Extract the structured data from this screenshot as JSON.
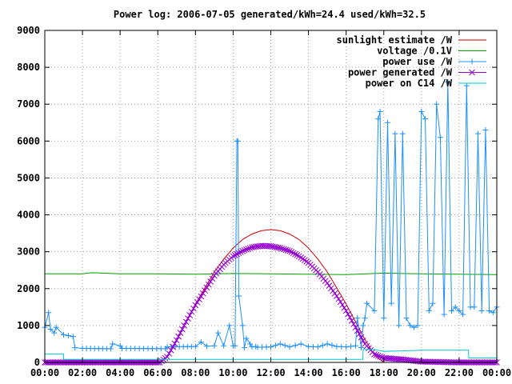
{
  "chart_data": {
    "type": "line",
    "title": "Power log: 2006-07-05 generated/kWh=24.4 used/kWh=32.5",
    "xlabel": "",
    "ylabel": "",
    "xlim": [
      0,
      24
    ],
    "ylim": [
      0,
      9000
    ],
    "grid": true,
    "legend_position": "top-right",
    "x_ticks": [
      {
        "value": 0,
        "label": "00:00"
      },
      {
        "value": 2,
        "label": "02:00"
      },
      {
        "value": 4,
        "label": "04:00"
      },
      {
        "value": 6,
        "label": "06:00"
      },
      {
        "value": 8,
        "label": "08:00"
      },
      {
        "value": 10,
        "label": "10:00"
      },
      {
        "value": 12,
        "label": "12:00"
      },
      {
        "value": 14,
        "label": "14:00"
      },
      {
        "value": 16,
        "label": "16:00"
      },
      {
        "value": 18,
        "label": "18:00"
      },
      {
        "value": 20,
        "label": "20:00"
      },
      {
        "value": 22,
        "label": "22:00"
      },
      {
        "value": 24,
        "label": "00:00"
      }
    ],
    "y_ticks": [
      {
        "value": 0,
        "label": "0"
      },
      {
        "value": 1000,
        "label": "1000"
      },
      {
        "value": 2000,
        "label": "2000"
      },
      {
        "value": 3000,
        "label": "3000"
      },
      {
        "value": 4000,
        "label": "4000"
      },
      {
        "value": 5000,
        "label": "5000"
      },
      {
        "value": 6000,
        "label": "6000"
      },
      {
        "value": 7000,
        "label": "7000"
      },
      {
        "value": 8000,
        "label": "8000"
      },
      {
        "value": 9000,
        "label": "9000"
      }
    ],
    "series": [
      {
        "name": "sunlight estimate /W",
        "color": "#cc0000",
        "marker": "none",
        "x": [
          0,
          6.1,
          6.5,
          7,
          7.5,
          8,
          8.5,
          9,
          9.5,
          10,
          10.5,
          11,
          11.5,
          12,
          12.5,
          13,
          13.5,
          14,
          14.5,
          15,
          15.5,
          16,
          16.5,
          17,
          17.5,
          18,
          24
        ],
        "y": [
          0,
          0,
          150,
          620,
          1100,
          1580,
          2020,
          2450,
          2800,
          3100,
          3330,
          3480,
          3570,
          3600,
          3570,
          3480,
          3330,
          3100,
          2800,
          2450,
          2020,
          1580,
          1100,
          620,
          200,
          0,
          0
        ]
      },
      {
        "name": "voltage /0.1V",
        "color": "#00a000",
        "marker": "none",
        "x": [
          0,
          2,
          2.5,
          4,
          6,
          8,
          10,
          12,
          14,
          16,
          18,
          20,
          22,
          24
        ],
        "y": [
          2400,
          2400,
          2430,
          2400,
          2400,
          2390,
          2410,
          2400,
          2390,
          2380,
          2420,
          2400,
          2390,
          2380
        ]
      },
      {
        "name": "power use /W",
        "color": "#1e90ff",
        "marker": "+",
        "x": [
          0,
          0.2,
          0.3,
          0.5,
          0.6,
          1,
          1.5,
          1.6,
          2,
          3.5,
          3.6,
          4,
          4.1,
          6.4,
          6.5,
          8,
          8.3,
          8.6,
          9,
          9.2,
          9.5,
          9.8,
          10,
          10.1,
          10.2,
          10.25,
          10.3,
          10.5,
          10.6,
          10.7,
          10.9,
          11,
          11.2,
          11.3,
          12,
          12.5,
          13,
          13.6,
          14,
          14.5,
          15,
          15.5,
          16,
          16.5,
          16.6,
          16.8,
          16.9,
          17,
          17.1,
          17.5,
          17.7,
          17.8,
          18,
          18.2,
          18.4,
          18.6,
          18.8,
          19,
          19.2,
          19.4,
          19.6,
          19.8,
          20,
          20.2,
          20.4,
          20.6,
          20.8,
          21,
          21.2,
          21.4,
          21.6,
          21.8,
          22,
          22.2,
          22.4,
          22.6,
          22.8,
          23,
          23.2,
          23.4,
          23.6,
          23.8,
          24
        ],
        "y": [
          950,
          1350,
          900,
          800,
          950,
          750,
          700,
          400,
          380,
          370,
          500,
          450,
          380,
          370,
          420,
          430,
          550,
          440,
          450,
          800,
          450,
          1000,
          450,
          450,
          6000,
          6000,
          1800,
          1000,
          400,
          650,
          500,
          420,
          430,
          410,
          420,
          500,
          420,
          500,
          430,
          420,
          500,
          430,
          420,
          450,
          1200,
          400,
          1000,
          1200,
          1600,
          1400,
          6600,
          6800,
          1200,
          6500,
          1600,
          6200,
          1000,
          6200,
          1200,
          1000,
          950,
          1000,
          6800,
          6600,
          1400,
          1600,
          7000,
          6100,
          1300,
          7600,
          1400,
          1500,
          1400,
          1300,
          7500,
          1500,
          1500,
          6200,
          1400,
          6300,
          1400,
          1350,
          1500
        ]
      },
      {
        "name": "power generated /W",
        "color": "#9400d3",
        "marker": "x",
        "x": [
          0,
          6.1,
          6.5,
          7,
          7.5,
          8,
          8.5,
          9,
          9.5,
          10,
          10.5,
          11,
          11.5,
          12,
          12.5,
          13,
          13.5,
          14,
          14.5,
          15,
          15.5,
          16,
          16.5,
          17,
          17.5,
          18,
          19,
          20,
          22,
          24
        ],
        "y": [
          0,
          0,
          150,
          600,
          1100,
          1550,
          1950,
          2350,
          2650,
          2880,
          3020,
          3120,
          3160,
          3150,
          3100,
          3020,
          2880,
          2700,
          2450,
          2150,
          1800,
          1400,
          950,
          500,
          220,
          120,
          80,
          20,
          0,
          0
        ]
      },
      {
        "name": "power on C14 /W",
        "color": "#00c8c8",
        "marker": "none",
        "x": [
          0,
          0.99,
          1,
          16.89,
          16.9,
          17.5,
          18,
          19.5,
          20,
          22.5,
          22.51,
          24
        ],
        "y": [
          230,
          230,
          80,
          80,
          350,
          350,
          300,
          320,
          330,
          330,
          120,
          120
        ]
      }
    ]
  }
}
